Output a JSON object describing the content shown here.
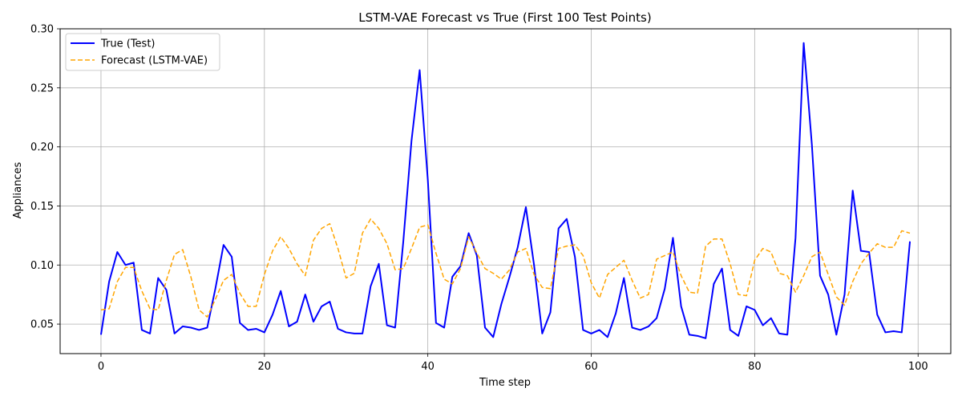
{
  "chart_data": {
    "type": "line",
    "title": "LSTM-VAE Forecast vs True (First 100 Test Points)",
    "xlabel": "Time step",
    "ylabel": "Appliances",
    "xlim": [
      -5,
      104
    ],
    "ylim": [
      0.025,
      0.3
    ],
    "xticks": [
      0,
      20,
      40,
      60,
      80,
      100
    ],
    "yticks": [
      0.05,
      0.1,
      0.15,
      0.2,
      0.25,
      0.3
    ],
    "grid": true,
    "legend_position": "top-left",
    "series": [
      {
        "name": "True (Test)",
        "color": "#0000ff",
        "style": "solid",
        "values": [
          0.041,
          0.086,
          0.111,
          0.1,
          0.102,
          0.045,
          0.042,
          0.089,
          0.079,
          0.042,
          0.048,
          0.047,
          0.045,
          0.047,
          0.08,
          0.117,
          0.107,
          0.051,
          0.045,
          0.046,
          0.043,
          0.058,
          0.078,
          0.048,
          0.052,
          0.075,
          0.052,
          0.065,
          0.069,
          0.046,
          0.043,
          0.042,
          0.042,
          0.082,
          0.101,
          0.049,
          0.047,
          0.12,
          0.205,
          0.265,
          0.172,
          0.051,
          0.047,
          0.09,
          0.099,
          0.127,
          0.108,
          0.047,
          0.039,
          0.067,
          0.09,
          0.115,
          0.149,
          0.1,
          0.042,
          0.06,
          0.131,
          0.139,
          0.107,
          0.045,
          0.042,
          0.045,
          0.039,
          0.059,
          0.089,
          0.047,
          0.045,
          0.048,
          0.055,
          0.08,
          0.123,
          0.065,
          0.041,
          0.04,
          0.038,
          0.084,
          0.097,
          0.045,
          0.04,
          0.065,
          0.062,
          0.049,
          0.055,
          0.042,
          0.041,
          0.123,
          0.288,
          0.202,
          0.091,
          0.075,
          0.041,
          0.075,
          0.163,
          0.112,
          0.111,
          0.058,
          0.043,
          0.044,
          0.043,
          0.12
        ]
      },
      {
        "name": "Forecast (LSTM-VAE)",
        "color": "#ffa500",
        "style": "dashed",
        "values": [
          0.062,
          0.063,
          0.086,
          0.098,
          0.098,
          0.078,
          0.063,
          0.062,
          0.087,
          0.109,
          0.113,
          0.09,
          0.062,
          0.056,
          0.071,
          0.087,
          0.092,
          0.076,
          0.065,
          0.065,
          0.092,
          0.112,
          0.124,
          0.114,
          0.101,
          0.091,
          0.121,
          0.131,
          0.135,
          0.114,
          0.089,
          0.093,
          0.127,
          0.139,
          0.131,
          0.118,
          0.096,
          0.097,
          0.114,
          0.132,
          0.134,
          0.11,
          0.088,
          0.084,
          0.097,
          0.124,
          0.11,
          0.097,
          0.093,
          0.088,
          0.096,
          0.111,
          0.114,
          0.092,
          0.081,
          0.08,
          0.114,
          0.116,
          0.117,
          0.108,
          0.085,
          0.072,
          0.092,
          0.098,
          0.104,
          0.087,
          0.072,
          0.075,
          0.105,
          0.108,
          0.111,
          0.091,
          0.077,
          0.076,
          0.116,
          0.122,
          0.122,
          0.101,
          0.075,
          0.074,
          0.104,
          0.114,
          0.111,
          0.093,
          0.091,
          0.077,
          0.091,
          0.107,
          0.111,
          0.092,
          0.073,
          0.066,
          0.086,
          0.101,
          0.11,
          0.118,
          0.115,
          0.115,
          0.129,
          0.127
        ]
      }
    ]
  }
}
